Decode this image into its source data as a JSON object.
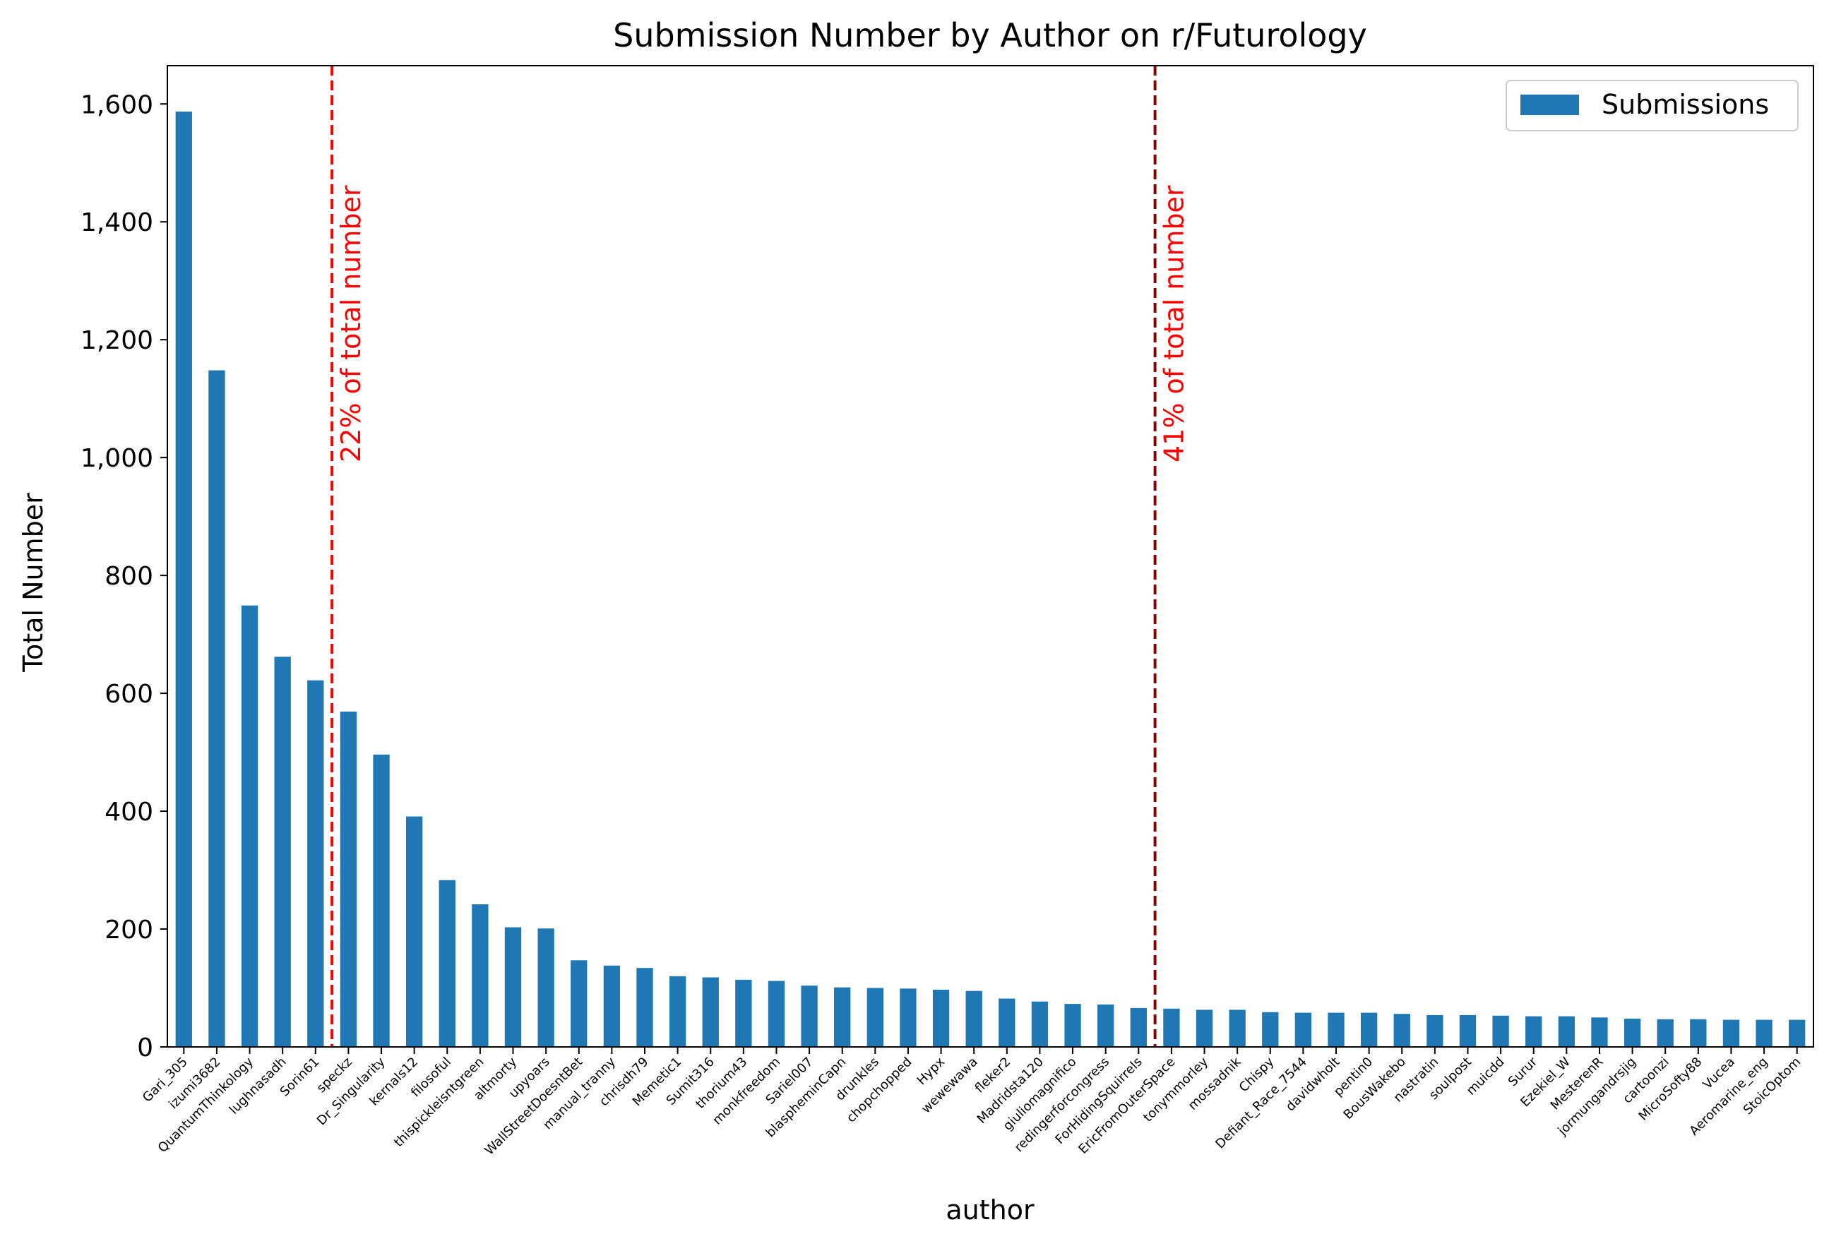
{
  "chart_data": {
    "type": "bar",
    "title": "Submission Number by Author on r/Futurology",
    "xlabel": "author",
    "ylabel": "Total Number",
    "ylim": [
      0,
      1665
    ],
    "yticks": [
      0,
      200,
      400,
      600,
      800,
      1000,
      1200,
      1400,
      1600
    ],
    "ytick_labels": [
      "0",
      "200",
      "400",
      "600",
      "800",
      "1,000",
      "1,200",
      "1,400",
      "1,600"
    ],
    "grid": false,
    "legend": {
      "position": "top-right",
      "entries": [
        "Submissions"
      ]
    },
    "bar_color": "#1f77b4",
    "categories": [
      "Gari_305",
      "izumi3682",
      "QuantumThinkology",
      "lughnasadh",
      "Sorin61",
      "speckz",
      "Dr_Singularity",
      "kernals12",
      "filosoful",
      "thispickleisntgreen",
      "altmorty",
      "upyoars",
      "WallStreetDoesntBet",
      "manual_tranny",
      "chrisdh79",
      "Memetic1",
      "Sumit316",
      "thorium43",
      "monkfreedom",
      "Sariel007",
      "blasphеminCapn",
      "drunkles",
      "chopchopped",
      "Hypx",
      "wewewawa",
      "fleker2",
      "Madridsta120",
      "giuliomagnifico",
      "redingerforcongress",
      "ForHidingSquirrels",
      "EricFromOuterSpace",
      "tonymmorley",
      "mossadnik",
      "Chispy",
      "Defiant_Race_7544",
      "davidwholt",
      "pentin0",
      "BousWakebo",
      "nastratin",
      "soulpost",
      "muicdd",
      "Surur",
      "Ezekiel_W",
      "MesterenR",
      "jormungandrsjig",
      "cartoonzi",
      "MicroSofty88",
      "Vucea",
      "Aeromarine_eng",
      "StoicOptom"
    ],
    "series": [
      {
        "name": "Submissions",
        "values": [
          1587,
          1148,
          749,
          662,
          622,
          569,
          496,
          391,
          283,
          242,
          203,
          201,
          147,
          138,
          134,
          120,
          118,
          114,
          112,
          104,
          101,
          100,
          99,
          97,
          95,
          82,
          77,
          73,
          72,
          66,
          65,
          63,
          63,
          59,
          58,
          58,
          58,
          56,
          54,
          54,
          53,
          52,
          52,
          50,
          48,
          47,
          47,
          46,
          46,
          46
        ]
      }
    ],
    "annotations": [
      {
        "label": "22% of total number",
        "after_category": "Sorin61",
        "color": "#ff0000",
        "line_color": "#ff0000"
      },
      {
        "label": "41% of total number",
        "after_category": "ForHidingSquirrels",
        "color": "#ff0000",
        "line_color": "#8b0000"
      }
    ]
  }
}
